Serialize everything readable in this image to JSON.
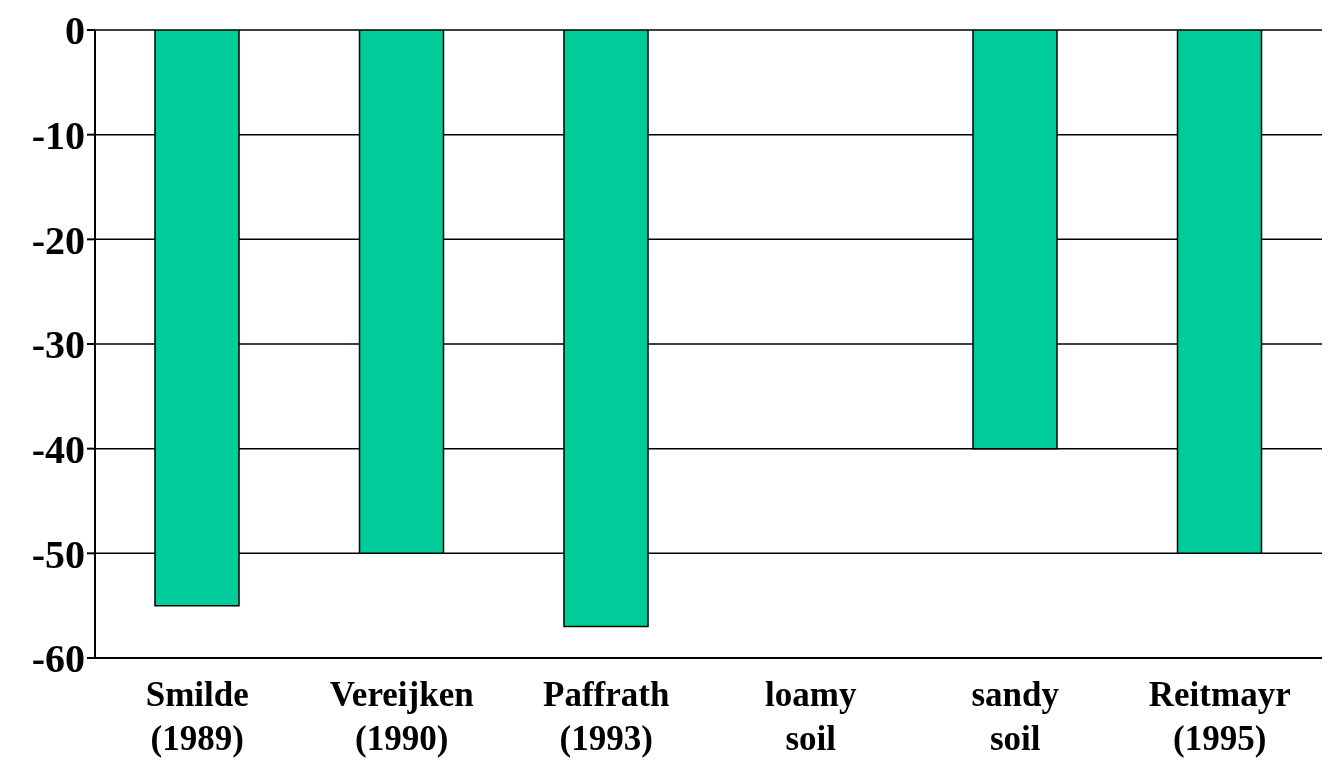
{
  "chart_data": {
    "type": "bar",
    "categories": [
      "Smilde (1989)",
      "Vereijken (1990)",
      "Paffrath (1993)",
      "loamy soil",
      "sandy soil",
      "Reitmayr (1995)"
    ],
    "values": [
      -55,
      -50,
      -57,
      0,
      -40,
      -50
    ],
    "color": "#00cc99",
    "ylim": [
      -60,
      0
    ],
    "yticks": [
      0,
      -10,
      -20,
      -30,
      -40,
      -50,
      -60
    ],
    "grid": "y"
  }
}
